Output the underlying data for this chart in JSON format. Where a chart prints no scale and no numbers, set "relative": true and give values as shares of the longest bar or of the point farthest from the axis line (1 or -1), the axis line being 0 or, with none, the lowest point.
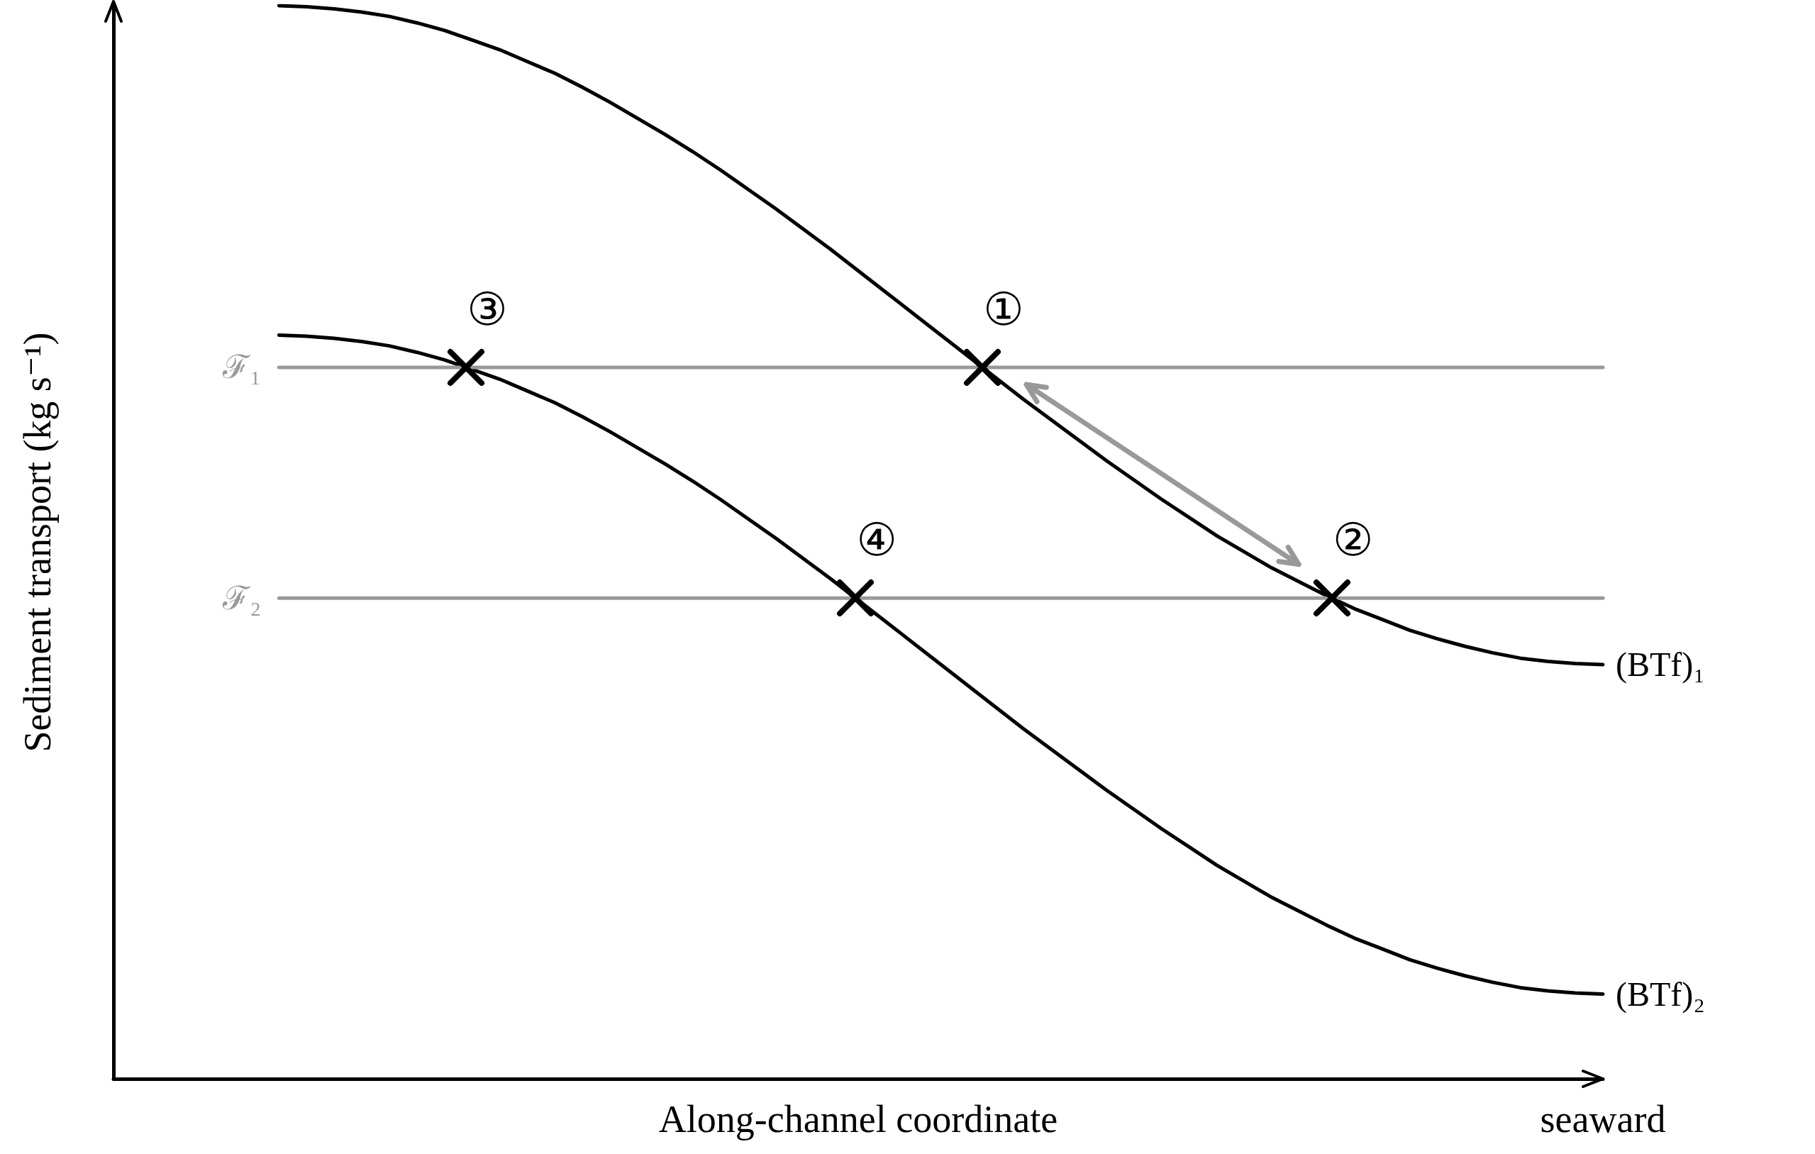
{
  "chart_data": {
    "type": "line",
    "relative": true,
    "xlabel": "Along-channel coordinate",
    "ylabel": "Sediment transport (kg s⁻¹)",
    "legend": false,
    "grid": false,
    "marker": "none",
    "line_style": "solid",
    "annotations": [
      "①",
      "②",
      "③",
      "④",
      "seaward"
    ],
    "categories": [
      null,
      null,
      null,
      null,
      null,
      null,
      null,
      null,
      null,
      null,
      null,
      null,
      null,
      null,
      null,
      null,
      null,
      null,
      null,
      null,
      null,
      null,
      null,
      null,
      null,
      null,
      null,
      null,
      null,
      null,
      null,
      null,
      null,
      null,
      null,
      null,
      null,
      null,
      null,
      null,
      null,
      null,
      null,
      null,
      null,
      null,
      null,
      null,
      null,
      null,
      null,
      null,
      null,
      null,
      null
    ],
    "series": [
      {
        "name": "(BTf)₁",
        "color": "#000000",
        "values": [
          null,
          null,
          null,
          null,
          null,
          null,
          1.0,
          0.999,
          0.997,
          0.994,
          0.99,
          0.984,
          0.977,
          0.968,
          0.959,
          0.948,
          0.937,
          0.924,
          0.91,
          0.895,
          0.88,
          0.864,
          0.847,
          0.829,
          0.811,
          0.792,
          0.773,
          0.753,
          0.733,
          0.713,
          0.693,
          0.673,
          0.653,
          0.633,
          0.614,
          0.595,
          0.576,
          0.558,
          0.54,
          0.523,
          0.506,
          0.491,
          0.476,
          0.463,
          0.45,
          0.438,
          0.428,
          0.418,
          0.41,
          0.403,
          0.397,
          0.392,
          0.389,
          0.387,
          0.386
        ]
      },
      {
        "name": "(BTf)₂",
        "color": "#000000",
        "values": [
          null,
          null,
          null,
          null,
          null,
          null,
          0.693,
          0.692,
          0.69,
          0.687,
          0.683,
          0.677,
          0.67,
          0.661,
          0.652,
          0.641,
          0.63,
          0.617,
          0.603,
          0.588,
          0.573,
          0.557,
          0.54,
          0.522,
          0.504,
          0.485,
          0.466,
          0.446,
          0.426,
          0.406,
          0.386,
          0.366,
          0.346,
          0.326,
          0.307,
          0.288,
          0.269,
          0.251,
          0.233,
          0.216,
          0.199,
          0.184,
          0.169,
          0.156,
          0.143,
          0.131,
          0.121,
          0.111,
          0.103,
          0.096,
          0.09,
          0.085,
          0.082,
          0.08,
          0.079
        ]
      },
      {
        "name": "ℱ₁",
        "color": "#999999",
        "values": [
          null,
          null,
          null,
          null,
          null,
          null,
          0.663,
          0.663,
          0.663,
          0.663,
          0.663,
          0.663,
          0.663,
          0.663,
          0.663,
          0.663,
          0.663,
          0.663,
          0.663,
          0.663,
          0.663,
          0.663,
          0.663,
          0.663,
          0.663,
          0.663,
          0.663,
          0.663,
          0.663,
          0.663,
          0.663,
          0.663,
          0.663,
          0.663,
          0.663,
          0.663,
          0.663,
          0.663,
          0.663,
          0.663,
          0.663,
          0.663,
          0.663,
          0.663,
          0.663,
          0.663,
          0.663,
          0.663,
          0.663,
          0.663,
          0.663,
          0.663,
          0.663,
          0.663,
          0.663
        ]
      },
      {
        "name": "ℱ₂",
        "color": "#999999",
        "values": [
          null,
          null,
          null,
          null,
          null,
          null,
          0.448,
          0.448,
          0.448,
          0.448,
          0.448,
          0.448,
          0.448,
          0.448,
          0.448,
          0.448,
          0.448,
          0.448,
          0.448,
          0.448,
          0.448,
          0.448,
          0.448,
          0.448,
          0.448,
          0.448,
          0.448,
          0.448,
          0.448,
          0.448,
          0.448,
          0.448,
          0.448,
          0.448,
          0.448,
          0.448,
          0.448,
          0.448,
          0.448,
          0.448,
          0.448,
          0.448,
          0.448,
          0.448,
          0.448,
          0.448,
          0.448,
          0.448,
          0.448,
          0.448,
          0.448,
          0.448,
          0.448,
          0.448,
          0.448
        ]
      }
    ]
  }
}
